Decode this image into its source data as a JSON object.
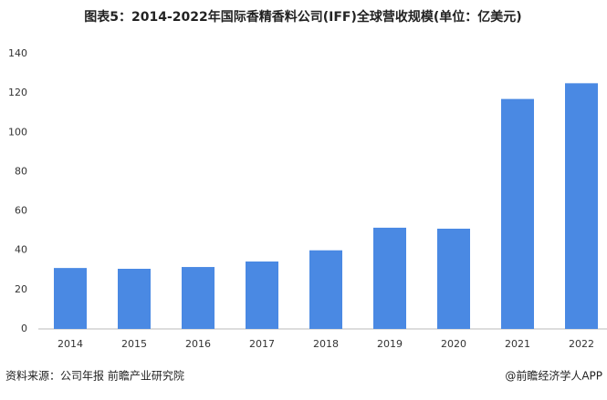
{
  "chart_data": {
    "type": "bar",
    "title": "图表5：2014-2022年国际香精香料公司(IFF)全球营收规模(单位：亿美元)",
    "categories": [
      "2014",
      "2015",
      "2016",
      "2017",
      "2018",
      "2019",
      "2020",
      "2021",
      "2022"
    ],
    "values": [
      31,
      30.6,
      31.5,
      34.3,
      40,
      51.5,
      51,
      117,
      125
    ],
    "color": "#4a89e3",
    "ylim": [
      0,
      140
    ],
    "yticks": [
      0,
      20,
      40,
      60,
      80,
      100,
      120,
      140
    ],
    "grid": false,
    "source": "资料来源：公司年报 前瞻产业研究院",
    "credit": "@前瞻经济学人APP"
  }
}
